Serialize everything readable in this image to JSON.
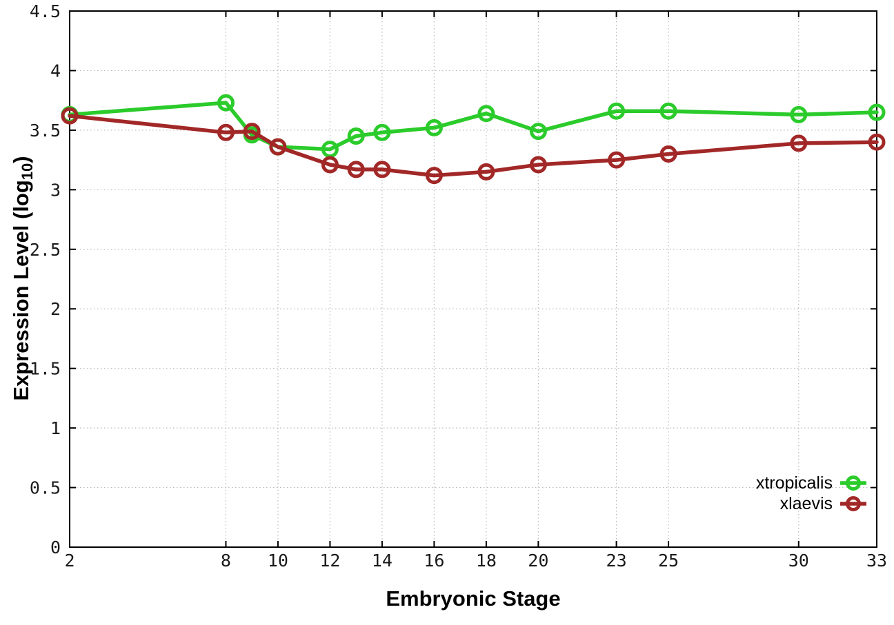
{
  "chart_data": {
    "type": "line",
    "title": "",
    "xlabel": "Embryonic Stage",
    "ylabel_prefix": "Expression Level (log",
    "ylabel_sub": "10",
    "ylabel_suffix": ")",
    "background": "#ffffff",
    "grid": true,
    "grid_style": "dotted",
    "legend_position": "inside-bottom-right",
    "xlim": [
      2,
      33
    ],
    "ylim": [
      0,
      4.5
    ],
    "x_ticks": [
      2,
      8,
      10,
      12,
      14,
      16,
      18,
      20,
      23,
      25,
      30,
      33
    ],
    "y_ticks": [
      0,
      0.5,
      1,
      1.5,
      2,
      2.5,
      3,
      3.5,
      4,
      4.5
    ],
    "x": [
      2,
      8,
      9,
      10,
      12,
      13,
      14,
      16,
      18,
      20,
      23,
      25,
      30,
      33
    ],
    "series": [
      {
        "name": "xtropicalis",
        "color": "#2bcb2b",
        "marker": "open-circle",
        "values": [
          3.63,
          3.73,
          3.46,
          3.36,
          3.34,
          3.45,
          3.48,
          3.52,
          3.64,
          3.49,
          3.66,
          3.66,
          3.63,
          3.65
        ]
      },
      {
        "name": "xlaevis",
        "color": "#a22828",
        "marker": "open-circle",
        "values": [
          3.62,
          3.48,
          3.49,
          3.36,
          3.21,
          3.17,
          3.17,
          3.12,
          3.15,
          3.21,
          3.25,
          3.3,
          3.39,
          3.4
        ]
      }
    ]
  }
}
